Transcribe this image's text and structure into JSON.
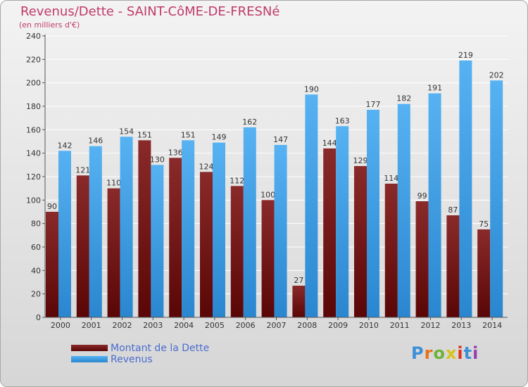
{
  "title": "Revenus/Dette - SAINT-CôME-DE-FRESNé",
  "subtitle": "(en milliers d'€)",
  "colors": {
    "dette": "#7b1c1c",
    "revenus": "#3f9ee8",
    "title": "#c03a6a",
    "legend_text": "#4a6ccf"
  },
  "logo": {
    "text": "Proxiti",
    "letter_colors": [
      "#3d8fd8",
      "#e8701c",
      "#6fb23b",
      "#d8c31c",
      "#e0301e",
      "#3d8fd8",
      "#9a3fb0"
    ]
  },
  "legend": {
    "dette_label": "Montant de la Dette",
    "revenus_label": "Revenus"
  },
  "chart_data": {
    "type": "bar",
    "categories": [
      "2000",
      "2001",
      "2002",
      "2003",
      "2004",
      "2005",
      "2006",
      "2007",
      "2008",
      "2009",
      "2010",
      "2011",
      "2012",
      "2013",
      "2014"
    ],
    "series": [
      {
        "name": "Montant de la Dette",
        "values": [
          90,
          121,
          110,
          151,
          136,
          124,
          112,
          100,
          27,
          144,
          129,
          114,
          99,
          87,
          75
        ]
      },
      {
        "name": "Revenus",
        "values": [
          142,
          146,
          154,
          130,
          151,
          149,
          162,
          147,
          190,
          163,
          177,
          182,
          191,
          219,
          202
        ]
      }
    ],
    "ylim": [
      0,
      240
    ],
    "yticks": [
      0,
      20,
      40,
      60,
      80,
      100,
      120,
      140,
      160,
      180,
      200,
      220,
      240
    ],
    "grid": true,
    "legend_position": "bottom-left"
  }
}
